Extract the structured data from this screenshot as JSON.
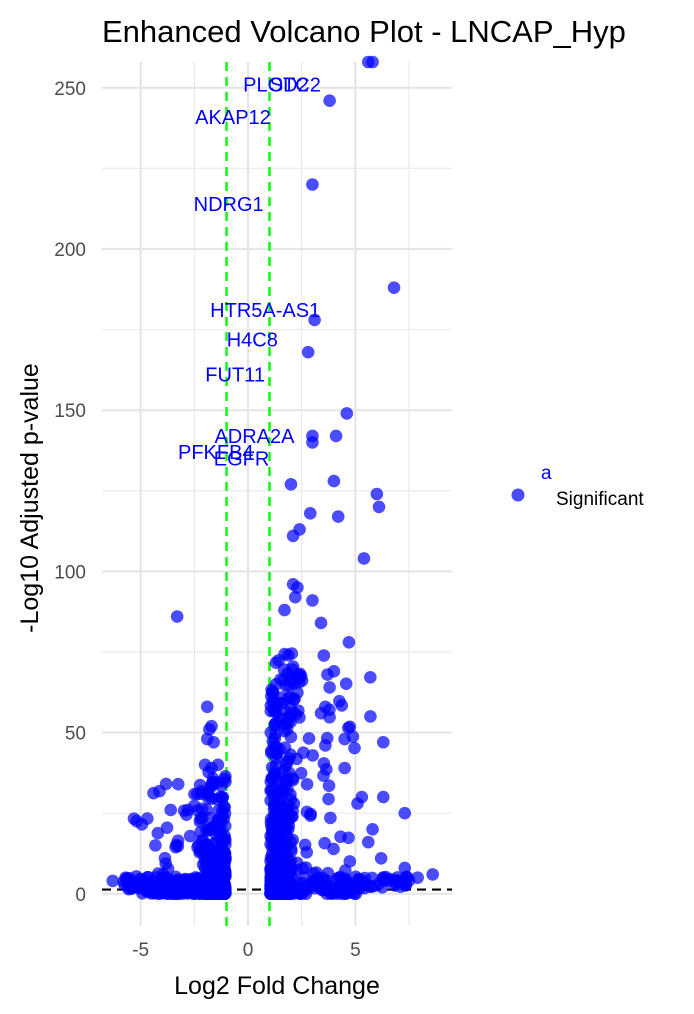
{
  "chart_data": {
    "type": "scatter",
    "title": "Enhanced Volcano Plot - LNCAP_Hyp",
    "xlabel": "Log2 Fold Change",
    "ylabel": "-Log10 Adjusted p-value",
    "xlim": [
      -6.8,
      9.5
    ],
    "ylim": [
      -10,
      258
    ],
    "xticks": [
      -5,
      0,
      5
    ],
    "yticks": [
      0,
      50,
      100,
      150,
      200,
      250
    ],
    "grid": true,
    "point_color": "#0000ff",
    "threshold_color": "#00ff00",
    "baseline_color": "#000000",
    "fc_thresholds": [
      -1,
      1
    ],
    "pvalue_threshold": 1.3,
    "legend": {
      "key_label": "a",
      "series_label": "Significant",
      "position": "right"
    },
    "labels": [
      {
        "text": "PLOD2",
        "x": 1.3,
        "y": 251
      },
      {
        "text": "STC2",
        "x": 2.2,
        "y": 251
      },
      {
        "text": "AKAP12",
        "x": -0.7,
        "y": 241
      },
      {
        "text": "NDRG1",
        "x": -0.9,
        "y": 214
      },
      {
        "text": "HTR5A-AS1",
        "x": 0.8,
        "y": 181
      },
      {
        "text": "H4C8",
        "x": 0.2,
        "y": 172
      },
      {
        "text": "FUT11",
        "x": -0.6,
        "y": 161
      },
      {
        "text": "ADRA2A",
        "x": 0.3,
        "y": 142
      },
      {
        "text": "PFKFB4",
        "x": -1.5,
        "y": 137
      },
      {
        "text": "EGFR",
        "x": -0.3,
        "y": 135
      }
    ],
    "notable_points": [
      {
        "x": 5.6,
        "y": 259
      },
      {
        "x": 5.8,
        "y": 259
      },
      {
        "x": 3.8,
        "y": 246
      },
      {
        "x": 3.0,
        "y": 220
      },
      {
        "x": 6.8,
        "y": 188
      },
      {
        "x": 3.1,
        "y": 178
      },
      {
        "x": 2.8,
        "y": 168
      },
      {
        "x": 4.6,
        "y": 149
      },
      {
        "x": 3.0,
        "y": 142
      },
      {
        "x": 4.1,
        "y": 142
      },
      {
        "x": 3.0,
        "y": 140
      },
      {
        "x": 2.0,
        "y": 127
      },
      {
        "x": 4.0,
        "y": 128
      },
      {
        "x": 6.0,
        "y": 124
      },
      {
        "x": 6.1,
        "y": 120
      },
      {
        "x": 2.9,
        "y": 118
      },
      {
        "x": 4.2,
        "y": 117
      },
      {
        "x": 2.4,
        "y": 113
      },
      {
        "x": 2.1,
        "y": 111
      },
      {
        "x": 5.4,
        "y": 104
      },
      {
        "x": -3.3,
        "y": 86
      },
      {
        "x": 2.1,
        "y": 96
      },
      {
        "x": 2.3,
        "y": 95
      },
      {
        "x": 2.2,
        "y": 92
      },
      {
        "x": 3.0,
        "y": 91
      },
      {
        "x": 1.7,
        "y": 88
      },
      {
        "x": 3.4,
        "y": 84
      },
      {
        "x": 4.7,
        "y": 78
      },
      {
        "x": 4.0,
        "y": 69
      },
      {
        "x": 3.7,
        "y": 68
      },
      {
        "x": 3.8,
        "y": 64
      },
      {
        "x": 3.6,
        "y": 58
      },
      {
        "x": 5.7,
        "y": 55
      },
      {
        "x": 3.4,
        "y": 56
      },
      {
        "x": 6.3,
        "y": 47
      },
      {
        "x": 4.5,
        "y": 48
      },
      {
        "x": 3.6,
        "y": 46
      },
      {
        "x": 4.5,
        "y": 39
      },
      {
        "x": -1.9,
        "y": 58
      },
      {
        "x": -1.7,
        "y": 52
      },
      {
        "x": -1.8,
        "y": 51
      },
      {
        "x": -1.9,
        "y": 48
      },
      {
        "x": -1.6,
        "y": 47
      },
      {
        "x": -2.0,
        "y": 40
      },
      {
        "x": -1.7,
        "y": 39
      },
      {
        "x": -1.4,
        "y": 40
      },
      {
        "x": -3.6,
        "y": 26
      },
      {
        "x": -2.8,
        "y": 26
      },
      {
        "x": 7.3,
        "y": 25
      },
      {
        "x": 6.3,
        "y": 30
      },
      {
        "x": 5.3,
        "y": 30
      },
      {
        "x": 5.1,
        "y": 28
      },
      {
        "x": 5.8,
        "y": 20
      },
      {
        "x": 5.6,
        "y": 16
      },
      {
        "x": 6.2,
        "y": 11
      },
      {
        "x": 7.3,
        "y": 8
      },
      {
        "x": 8.6,
        "y": 6
      },
      {
        "x": 7.9,
        "y": 5
      },
      {
        "x": 7.1,
        "y": 4
      },
      {
        "x": -6.3,
        "y": 4
      },
      {
        "x": -5.7,
        "y": 5
      },
      {
        "x": -5.4,
        "y": 3
      }
    ]
  }
}
